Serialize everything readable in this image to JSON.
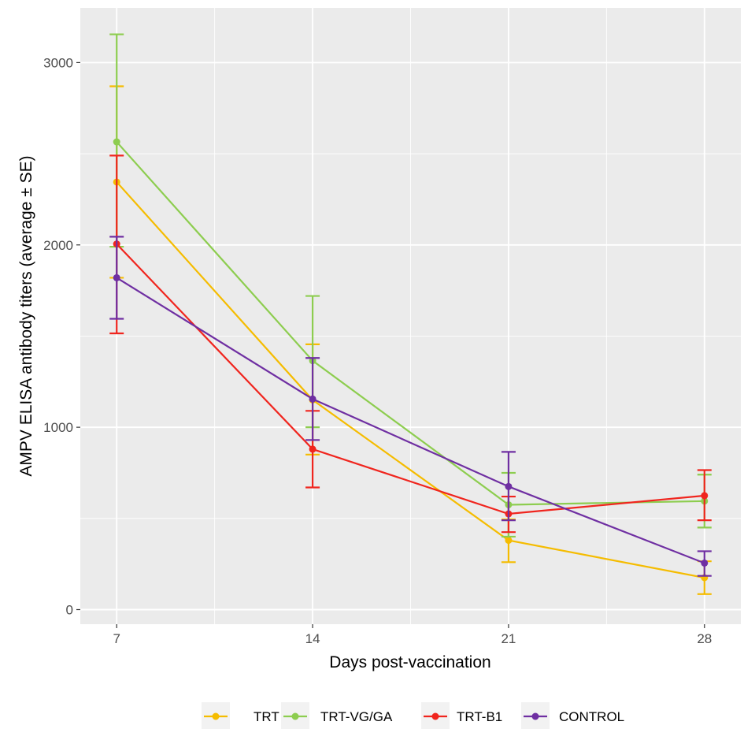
{
  "chart_data": {
    "type": "line",
    "xlabel": "Days post-vaccination",
    "ylabel": "AMPV ELISA antibody titers (average ± SE)",
    "x": [
      7,
      14,
      21,
      28
    ],
    "x_ticks": [
      "7",
      "14",
      "21",
      "28"
    ],
    "y_ticks": [
      "0",
      "1000",
      "2000",
      "3000"
    ],
    "xlim": [
      5.7,
      29.3
    ],
    "ylim": [
      -80,
      3300
    ],
    "grid": true,
    "background": "#ebebeb",
    "legend_position": "bottom",
    "error_bars": "average ± SE",
    "series": [
      {
        "name": "TRT",
        "color": "#f5bc00",
        "values": [
          2345,
          1150,
          380,
          175
        ],
        "lower": [
          1820,
          850,
          260,
          85
        ],
        "upper": [
          2870,
          1455,
          495,
          265
        ]
      },
      {
        "name": "TRT-VG/GA",
        "color": "#8dcd4f",
        "values": [
          2565,
          1365,
          575,
          595
        ],
        "lower": [
          1990,
          1000,
          400,
          450
        ],
        "upper": [
          3155,
          1720,
          750,
          740
        ]
      },
      {
        "name": "TRT-B1",
        "color": "#f0251e",
        "values": [
          2005,
          880,
          525,
          625
        ],
        "lower": [
          1515,
          670,
          425,
          490
        ],
        "upper": [
          2490,
          1090,
          620,
          765
        ]
      },
      {
        "name": "CONTROL",
        "color": "#6f2fa2",
        "values": [
          1820,
          1155,
          675,
          255
        ],
        "lower": [
          1595,
          930,
          490,
          185
        ],
        "upper": [
          2045,
          1380,
          865,
          320
        ]
      }
    ]
  }
}
